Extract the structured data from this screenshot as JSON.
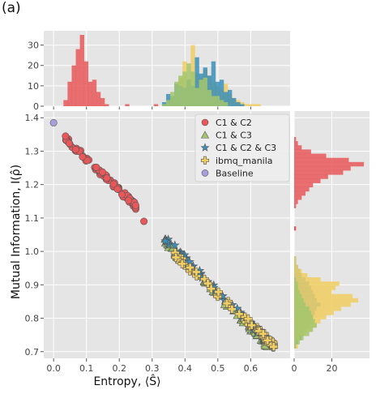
{
  "panel_label": "(a)",
  "chart_data": {
    "type": "scatter",
    "xlabel": "Entropy, ⟨Ŝ⟩",
    "ylabel": "Mutual Information, I(ρ̂)",
    "xlim": [
      -0.03,
      0.72
    ],
    "ylim": [
      0.68,
      1.42
    ],
    "xticks": [
      "0.0",
      "0.1",
      "0.2",
      "0.3",
      "0.4",
      "0.5",
      "0.6"
    ],
    "yticks": [
      "0.7",
      "0.8",
      "0.9",
      "1.0",
      "1.1",
      "1.2",
      "1.3",
      "1.4"
    ],
    "grid": true,
    "legend_position": "upper right",
    "colors": {
      "c1c2": "#e8585a",
      "c1c3": "#a3c56c",
      "c1c2c3": "#3b8fba",
      "ibmq": "#f1ce62",
      "baseline": "#a99fde",
      "panel_bg": "#e5e5e5",
      "grid": "#ffffff"
    },
    "series": [
      {
        "name": "C1 & C2",
        "marker": "circle",
        "color_key": "c1c2",
        "x_range": [
          0.035,
          0.25
        ],
        "y_at_start": 1.34,
        "y_at_end": 1.135,
        "count": 90
      },
      {
        "name": "C1 & C3",
        "marker": "triangle",
        "color_key": "c1c3",
        "x_range": [
          0.34,
          0.65
        ],
        "y_at_start": 1.03,
        "y_at_end": 0.72,
        "count": 75
      },
      {
        "name": "C1 & C2 & C3",
        "marker": "star",
        "color_key": "c1c2c3",
        "x_range": [
          0.34,
          0.64
        ],
        "y_at_start": 1.04,
        "y_at_end": 0.74,
        "count": 75
      },
      {
        "name": "ibmq_manila",
        "marker": "plus",
        "color_key": "ibmq",
        "x_range": [
          0.37,
          0.67
        ],
        "y_at_start": 0.99,
        "y_at_end": 0.72,
        "count": 75
      },
      {
        "name": "Baseline",
        "marker": "circle",
        "color_key": "baseline",
        "points": [
          [
            0.0,
            1.385
          ]
        ]
      }
    ],
    "extra_points": {
      "c1c2": [
        [
          0.275,
          1.09
        ]
      ]
    },
    "top_histogram": {
      "yticks": [
        "0",
        "10",
        "20",
        "30"
      ],
      "ylim": [
        0,
        37
      ],
      "bin_width": 0.0125,
      "series": [
        {
          "name": "C1 & C2",
          "color_key": "c1c2",
          "start": 0.03,
          "counts": [
            3,
            12,
            20,
            28,
            35,
            22,
            12,
            13,
            7,
            4,
            1,
            0,
            0,
            0,
            0,
            1,
            0,
            0,
            0,
            0,
            0,
            0,
            1
          ]
        },
        {
          "name": "ibmq_manila",
          "color_key": "ibmq",
          "start": 0.33,
          "counts": [
            1,
            2,
            4,
            6,
            14,
            22,
            12,
            30,
            16,
            14,
            18,
            15,
            12,
            10,
            8,
            11,
            6,
            4,
            3,
            2,
            1,
            1,
            1,
            1
          ]
        },
        {
          "name": "C1 & C2 & C3",
          "color_key": "c1c2c3",
          "start": 0.33,
          "counts": [
            2,
            6,
            5,
            11,
            10,
            9,
            13,
            10,
            24,
            16,
            19,
            15,
            22,
            12,
            13,
            7,
            8,
            4,
            2,
            1
          ]
        },
        {
          "name": "C1 & C3",
          "color_key": "c1c3",
          "start": 0.33,
          "counts": [
            1,
            3,
            7,
            12,
            15,
            17,
            21,
            17,
            9,
            13,
            14,
            8,
            5,
            5,
            3,
            2
          ]
        }
      ]
    },
    "right_histogram": {
      "xticks": [
        "0",
        "20"
      ],
      "xlim": [
        0,
        40
      ],
      "bin_height": 0.0125,
      "series": [
        {
          "name": "C1 & C2",
          "color_key": "c1c2",
          "start": 1.13,
          "counts": [
            1,
            2,
            4,
            6,
            8,
            10,
            14,
            18,
            26,
            30,
            37,
            29,
            17,
            9,
            4,
            2,
            1
          ]
        },
        {
          "name": "C1 & C2 & C3",
          "color_key": "c1c2c3",
          "start": 0.71,
          "counts": [
            1,
            2,
            4,
            5,
            6,
            8,
            9,
            10,
            11,
            12,
            14,
            12,
            11,
            10,
            9,
            8,
            6,
            4,
            3,
            2,
            1,
            1
          ]
        },
        {
          "name": "ibmq_manila",
          "color_key": "ibmq",
          "start": 0.71,
          "counts": [
            2,
            1,
            3,
            6,
            9,
            12,
            14,
            17,
            21,
            25,
            30,
            34,
            31,
            20,
            22,
            24,
            14,
            7,
            4,
            2,
            1,
            1
          ]
        },
        {
          "name": "C1 & C3",
          "color_key": "c1c3",
          "start": 0.71,
          "counts": [
            1,
            3,
            5,
            8,
            10,
            12,
            11,
            10,
            9,
            8,
            6,
            5,
            4,
            3,
            2,
            2,
            1
          ]
        }
      ],
      "isolated_bars": [
        {
          "y": 1.0625,
          "count": 1,
          "color_key": "c1c2"
        }
      ]
    }
  }
}
